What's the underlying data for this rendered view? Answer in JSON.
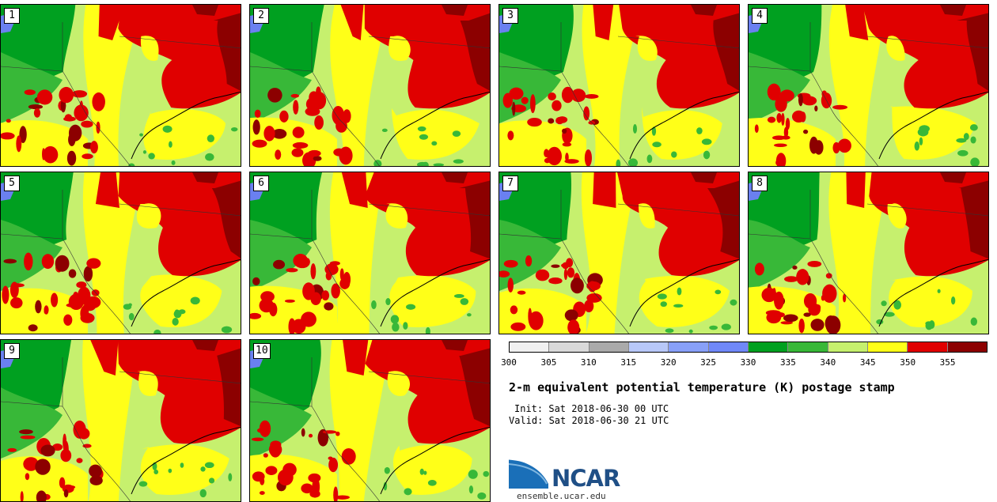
{
  "stamps": [
    {
      "label": "1"
    },
    {
      "label": "2"
    },
    {
      "label": "3"
    },
    {
      "label": "4"
    },
    {
      "label": "5"
    },
    {
      "label": "6"
    },
    {
      "label": "7"
    },
    {
      "label": "8"
    },
    {
      "label": "9"
    },
    {
      "label": "10"
    }
  ],
  "colorbar": {
    "colors": [
      "#f0f0f0",
      "#d9d9d9",
      "#aaaaaa",
      "#b8c8f8",
      "#88a0f8",
      "#7088f8",
      "#00a020",
      "#38b838",
      "#c6f06e",
      "#ffff18",
      "#e00000",
      "#8c0000"
    ],
    "ticks": [
      "300",
      "305",
      "310",
      "315",
      "320",
      "325",
      "330",
      "335",
      "340",
      "345",
      "350",
      "355"
    ]
  },
  "map_colors": {
    "water": "#6a80f0",
    "dark_green": "#00a020",
    "green": "#38b838",
    "light_green": "#c6f06e",
    "yellow": "#ffff18",
    "red": "#e00000",
    "dark_red": "#8c0000"
  },
  "title": "2-m equivalent potential temperature (K) postage stamp",
  "init": "Init: Sat 2018-06-30 00 UTC",
  "valid": "Valid: Sat 2018-06-30 21 UTC",
  "logo": {
    "text": "NCAR",
    "url": "ensemble.ucar.edu"
  }
}
